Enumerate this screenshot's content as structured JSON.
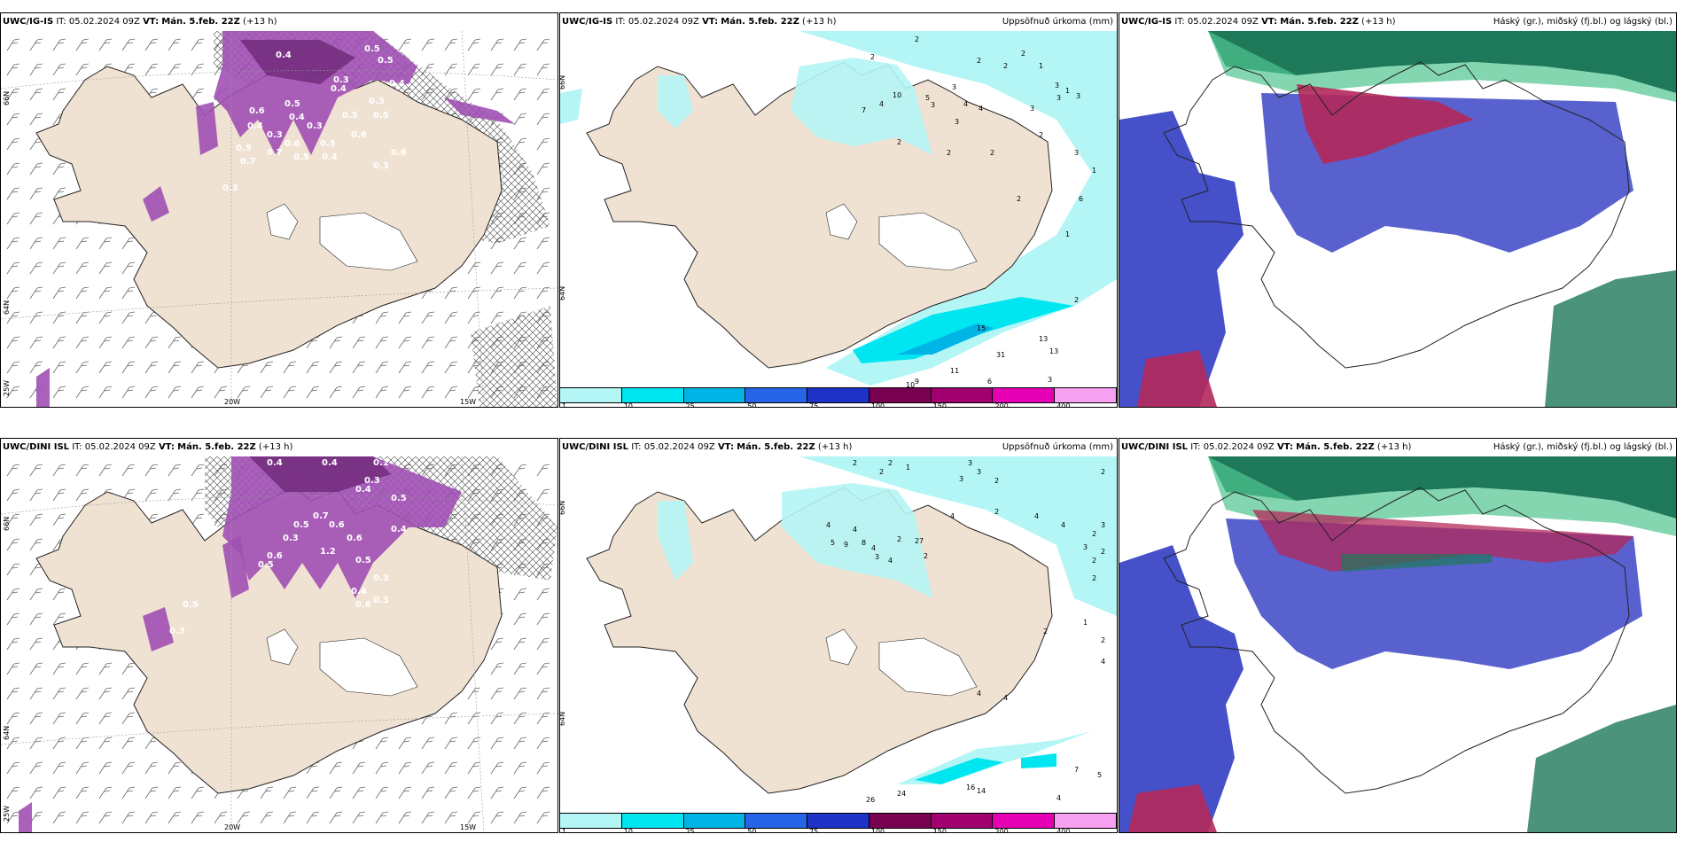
{
  "panels": [
    {
      "id": "p1",
      "model": "UWC/IG-IS",
      "it_prefix": "IT:",
      "it": "05.02.2024 09Z",
      "vt_prefix": "VT:",
      "vt": "Mán. 5.feb. 22Z",
      "lead": "(+13 h)",
      "right_title": "",
      "ticks": [
        "66N",
        "64N",
        "25W",
        "20W",
        "15W"
      ]
    },
    {
      "id": "p2",
      "model": "UWC/IG-IS",
      "it_prefix": "IT:",
      "it": "05.02.2024 09Z",
      "vt_prefix": "VT:",
      "vt": "Mán. 5.feb. 22Z",
      "lead": "(+13 h)",
      "right_title": "Uppsöfnuð úrkoma (mm)",
      "ticks": [
        "66N",
        "64N"
      ]
    },
    {
      "id": "p3",
      "model": "UWC/IG-IS",
      "it_prefix": "IT:",
      "it": "05.02.2024 09Z",
      "vt_prefix": "VT:",
      "vt": "Mán. 5.feb. 22Z",
      "lead": "(+13 h)",
      "right_title": "Háský (gr.), miðský (fj.bl.) og lágský (bl.)",
      "ticks": []
    },
    {
      "id": "p4",
      "model": "UWC/DINI ISL",
      "it_prefix": "IT:",
      "it": "05.02.2024 09Z",
      "vt_prefix": "VT:",
      "vt": "Mán. 5.feb. 22Z",
      "lead": "(+13 h)",
      "right_title": "",
      "ticks": [
        "66N",
        "64N",
        "25W",
        "20W",
        "15W"
      ]
    },
    {
      "id": "p5",
      "model": "UWC/DINI ISL",
      "it_prefix": "IT:",
      "it": "05.02.2024 09Z",
      "vt_prefix": "VT:",
      "vt": "Mán. 5.feb. 22Z",
      "lead": "(+13 h)",
      "right_title": "Uppsöfnuð úrkoma (mm)",
      "ticks": [
        "66N",
        "64N"
      ]
    },
    {
      "id": "p6",
      "model": "UWC/DINI ISL",
      "it_prefix": "IT:",
      "it": "05.02.2024 09Z",
      "vt_prefix": "VT:",
      "vt": "Mán. 5.feb. 22Z",
      "lead": "(+13 h)",
      "right_title": "Háský (gr.), miðský (fj.bl.) og lágský (bl.)",
      "ticks": []
    }
  ],
  "precip_legend": {
    "labels": [
      "1",
      "10",
      "25",
      "50",
      "75",
      "100",
      "150",
      "200",
      "400"
    ],
    "colors": [
      "#b4f5f5",
      "#00e6f0",
      "#00b4e6",
      "#2864e6",
      "#1e32c8",
      "#780050",
      "#a0006e",
      "#e600b4",
      "#f5a0f0"
    ]
  },
  "colors": {
    "land": "#f0e2d2",
    "precip_light": "#b4f5f5",
    "precip_mid": "#00e6f0",
    "precip_cyan": "#00b4e6",
    "icing": "#a050b4",
    "icing_dark": "#6e2878",
    "cloud_low": "#4650c8",
    "cloud_mid": "#b4285a",
    "cloud_high": "#1e785a"
  },
  "precip_values_top": [
    "2",
    "2",
    "2",
    "2",
    "2",
    "1",
    "1",
    "4",
    "7",
    "10",
    "5",
    "3",
    "3",
    "4",
    "4",
    "3",
    "3",
    "3",
    "3",
    "2",
    "2",
    "2",
    "3",
    "3",
    "2",
    "1",
    "6",
    "2",
    "1",
    "2",
    "15",
    "13",
    "13",
    "31",
    "11",
    "10",
    "9",
    "6",
    "3"
  ],
  "precip_values_bottom": [
    "2",
    "2",
    "2",
    "1",
    "3",
    "3",
    "3",
    "2",
    "4",
    "5",
    "8",
    "7",
    "9",
    "4",
    "4",
    "3",
    "4",
    "2",
    "2",
    "2",
    "4",
    "2",
    "4",
    "4",
    "2",
    "2",
    "2",
    "1",
    "2",
    "3",
    "3",
    "2",
    "2",
    "2",
    "4",
    "4",
    "4",
    "26",
    "24",
    "16",
    "14",
    "7",
    "5",
    "4"
  ],
  "icing_values_top": [
    "0.4",
    "0.5",
    "0.5",
    "0.3",
    "0.4",
    "0.3",
    "0.5",
    "0.4",
    "0.6",
    "0.5",
    "0.3",
    "0.4",
    "0.5",
    "0.6",
    "0.3",
    "0.7",
    "0.5",
    "0.4",
    "0.3",
    "0.6",
    "0.5",
    "0.4",
    "0.6",
    "0.5",
    "0.7",
    "0.3"
  ],
  "icing_values_bottom": [
    "0.4",
    "0.4",
    "0.1",
    "0.3",
    "0.4",
    "0.5",
    "0.7",
    "0.6",
    "0.5",
    "0.3",
    "0.6",
    "0.4",
    "0.5",
    "1.2",
    "0.6",
    "0.5",
    "0.3",
    "0.4",
    "0.3",
    "0.6",
    "0.5",
    "0.3"
  ]
}
